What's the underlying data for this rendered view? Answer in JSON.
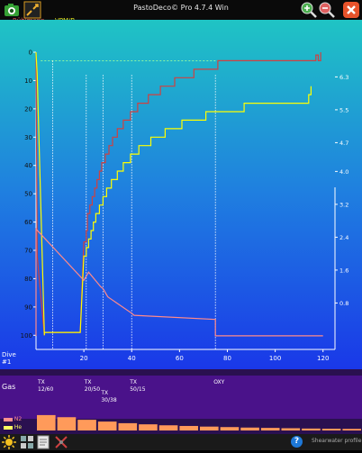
{
  "app": {
    "title": "PastoDeco© Pro  4.7.4 Win"
  },
  "legend": {
    "buhlmann": "Bühlmann",
    "vpmb": "VPM/B"
  },
  "colors": {
    "buhlmann": "#d04040",
    "vpmb": "#ffff00",
    "ascent": "#ff8a8a",
    "bg_top": "#1fc4c4",
    "bg_bottom": "#1a38e8"
  },
  "dive_label": {
    "line1": "Dive",
    "line2": "#1"
  },
  "gas_header": "Gas",
  "gas_switches": [
    {
      "t": 0,
      "line1": "TX",
      "line2": "12/60"
    },
    {
      "t": 21,
      "line1": "TX",
      "line2": "20/50"
    },
    {
      "t": 28,
      "line1": "TX",
      "line2": "30/38"
    },
    {
      "t": 40,
      "line1": "TX",
      "line2": "50/15"
    },
    {
      "t": 75,
      "line1": "OXY",
      "line2": ""
    }
  ],
  "tissue_legend": {
    "n2": "N2",
    "he": "He"
  },
  "tissue_levels": {
    "n2": [
      0.95,
      0.82,
      0.66,
      0.55,
      0.45,
      0.38,
      0.32,
      0.28,
      0.24,
      0.21,
      0.18,
      0.16,
      0.14,
      0.12,
      0.11,
      0.1
    ],
    "he": [
      0.45,
      0.4,
      0.34,
      0.28,
      0.22,
      0.18,
      0.15,
      0.12,
      0.1,
      0.08,
      0.07,
      0.06,
      0.05,
      0.04,
      0.03,
      0.02
    ]
  },
  "status": {
    "help": "?",
    "profile": "Shearwater profile"
  },
  "icons": [
    "camera-icon",
    "expand-icon",
    "zoom-in-icon",
    "zoom-out-icon",
    "close-icon",
    "settings-sun-icon",
    "tiles-icon",
    "document-icon",
    "crossed-tools-icon",
    "help-icon"
  ],
  "chart_data": {
    "type": "line",
    "xlabel": "",
    "ylabel": "",
    "y2label": "",
    "xlim": [
      0,
      125
    ],
    "ylim": [
      105,
      0
    ],
    "y2lim": [
      -0.33,
      6.9
    ],
    "x_ticks": [
      20,
      40,
      60,
      80,
      100,
      120
    ],
    "y_ticks": [
      0,
      10,
      20,
      30,
      40,
      50,
      60,
      70,
      80,
      90,
      100
    ],
    "y2_ticks": [
      "0.8",
      "1.6",
      "2.4",
      "3.2",
      "4.0",
      "4.7",
      "5.5",
      "6.3"
    ],
    "y2_tick_values": [
      0.8,
      1.6,
      2.4,
      3.2,
      4.0,
      4.7,
      5.5,
      6.3
    ],
    "grid": false,
    "vertical_lines": [
      21,
      28,
      40,
      75
    ],
    "target_depth": 3,
    "series": [
      {
        "name": "Bühlmann",
        "x": [
          0,
          0.5,
          3.5,
          3.5,
          18.5,
          20,
          21,
          21,
          21.5,
          21.5,
          22.5,
          22.5,
          23.5,
          23.5,
          24.5,
          24.5,
          25.5,
          25.5,
          26.5,
          26.5,
          27.5,
          27.5,
          29,
          29,
          30.5,
          30.5,
          32,
          32,
          34,
          34,
          36.5,
          36.5,
          39.5,
          39.5,
          42.5,
          42.5,
          47,
          47,
          52,
          52,
          58,
          58,
          66,
          66,
          76,
          76,
          92,
          92,
          117,
          117,
          118,
          118,
          119,
          119
        ],
        "y": [
          0,
          72,
          100,
          99,
          99,
          67,
          67,
          63,
          63,
          57,
          57,
          54,
          54,
          51,
          51,
          48,
          48,
          45,
          45,
          42,
          42,
          39,
          39,
          36,
          36,
          33,
          33,
          30,
          30,
          27,
          27,
          24,
          24,
          21,
          21,
          18,
          18,
          15,
          15,
          12,
          12,
          9,
          9,
          6,
          6,
          3,
          3,
          3,
          3,
          1,
          1,
          3,
          3,
          0
        ]
      },
      {
        "name": "VPM/B",
        "x": [
          0,
          0.5,
          3.5,
          3.5,
          18.5,
          20,
          21,
          21,
          22,
          22,
          23,
          23,
          24,
          24,
          25,
          25,
          26.5,
          26.5,
          28,
          28,
          29.5,
          29.5,
          31.5,
          31.5,
          34,
          34,
          36.5,
          36.5,
          39.5,
          39.5,
          43,
          43,
          48,
          48,
          54,
          54,
          61,
          61,
          71,
          71,
          87,
          87,
          114,
          114,
          115,
          115
        ],
        "y": [
          0,
          8,
          100,
          99,
          99,
          72,
          72,
          69,
          69,
          66,
          66,
          63,
          63,
          60,
          60,
          57,
          57,
          54,
          54,
          51,
          51,
          48,
          48,
          45,
          45,
          42,
          42,
          39,
          39,
          36,
          36,
          33,
          33,
          30,
          30,
          27,
          27,
          24,
          24,
          21,
          21,
          18,
          18,
          15,
          15,
          12
        ]
      },
      {
        "name": "",
        "x": [
          0,
          0,
          20,
          22,
          27,
          28,
          30,
          40,
          41,
          75,
          75,
          100,
          120
        ],
        "y": [
          0,
          2.6,
          1.35,
          1.55,
          1.2,
          1.15,
          0.95,
          0.55,
          0.5,
          0.4,
          0,
          0,
          0
        ]
      }
    ]
  }
}
